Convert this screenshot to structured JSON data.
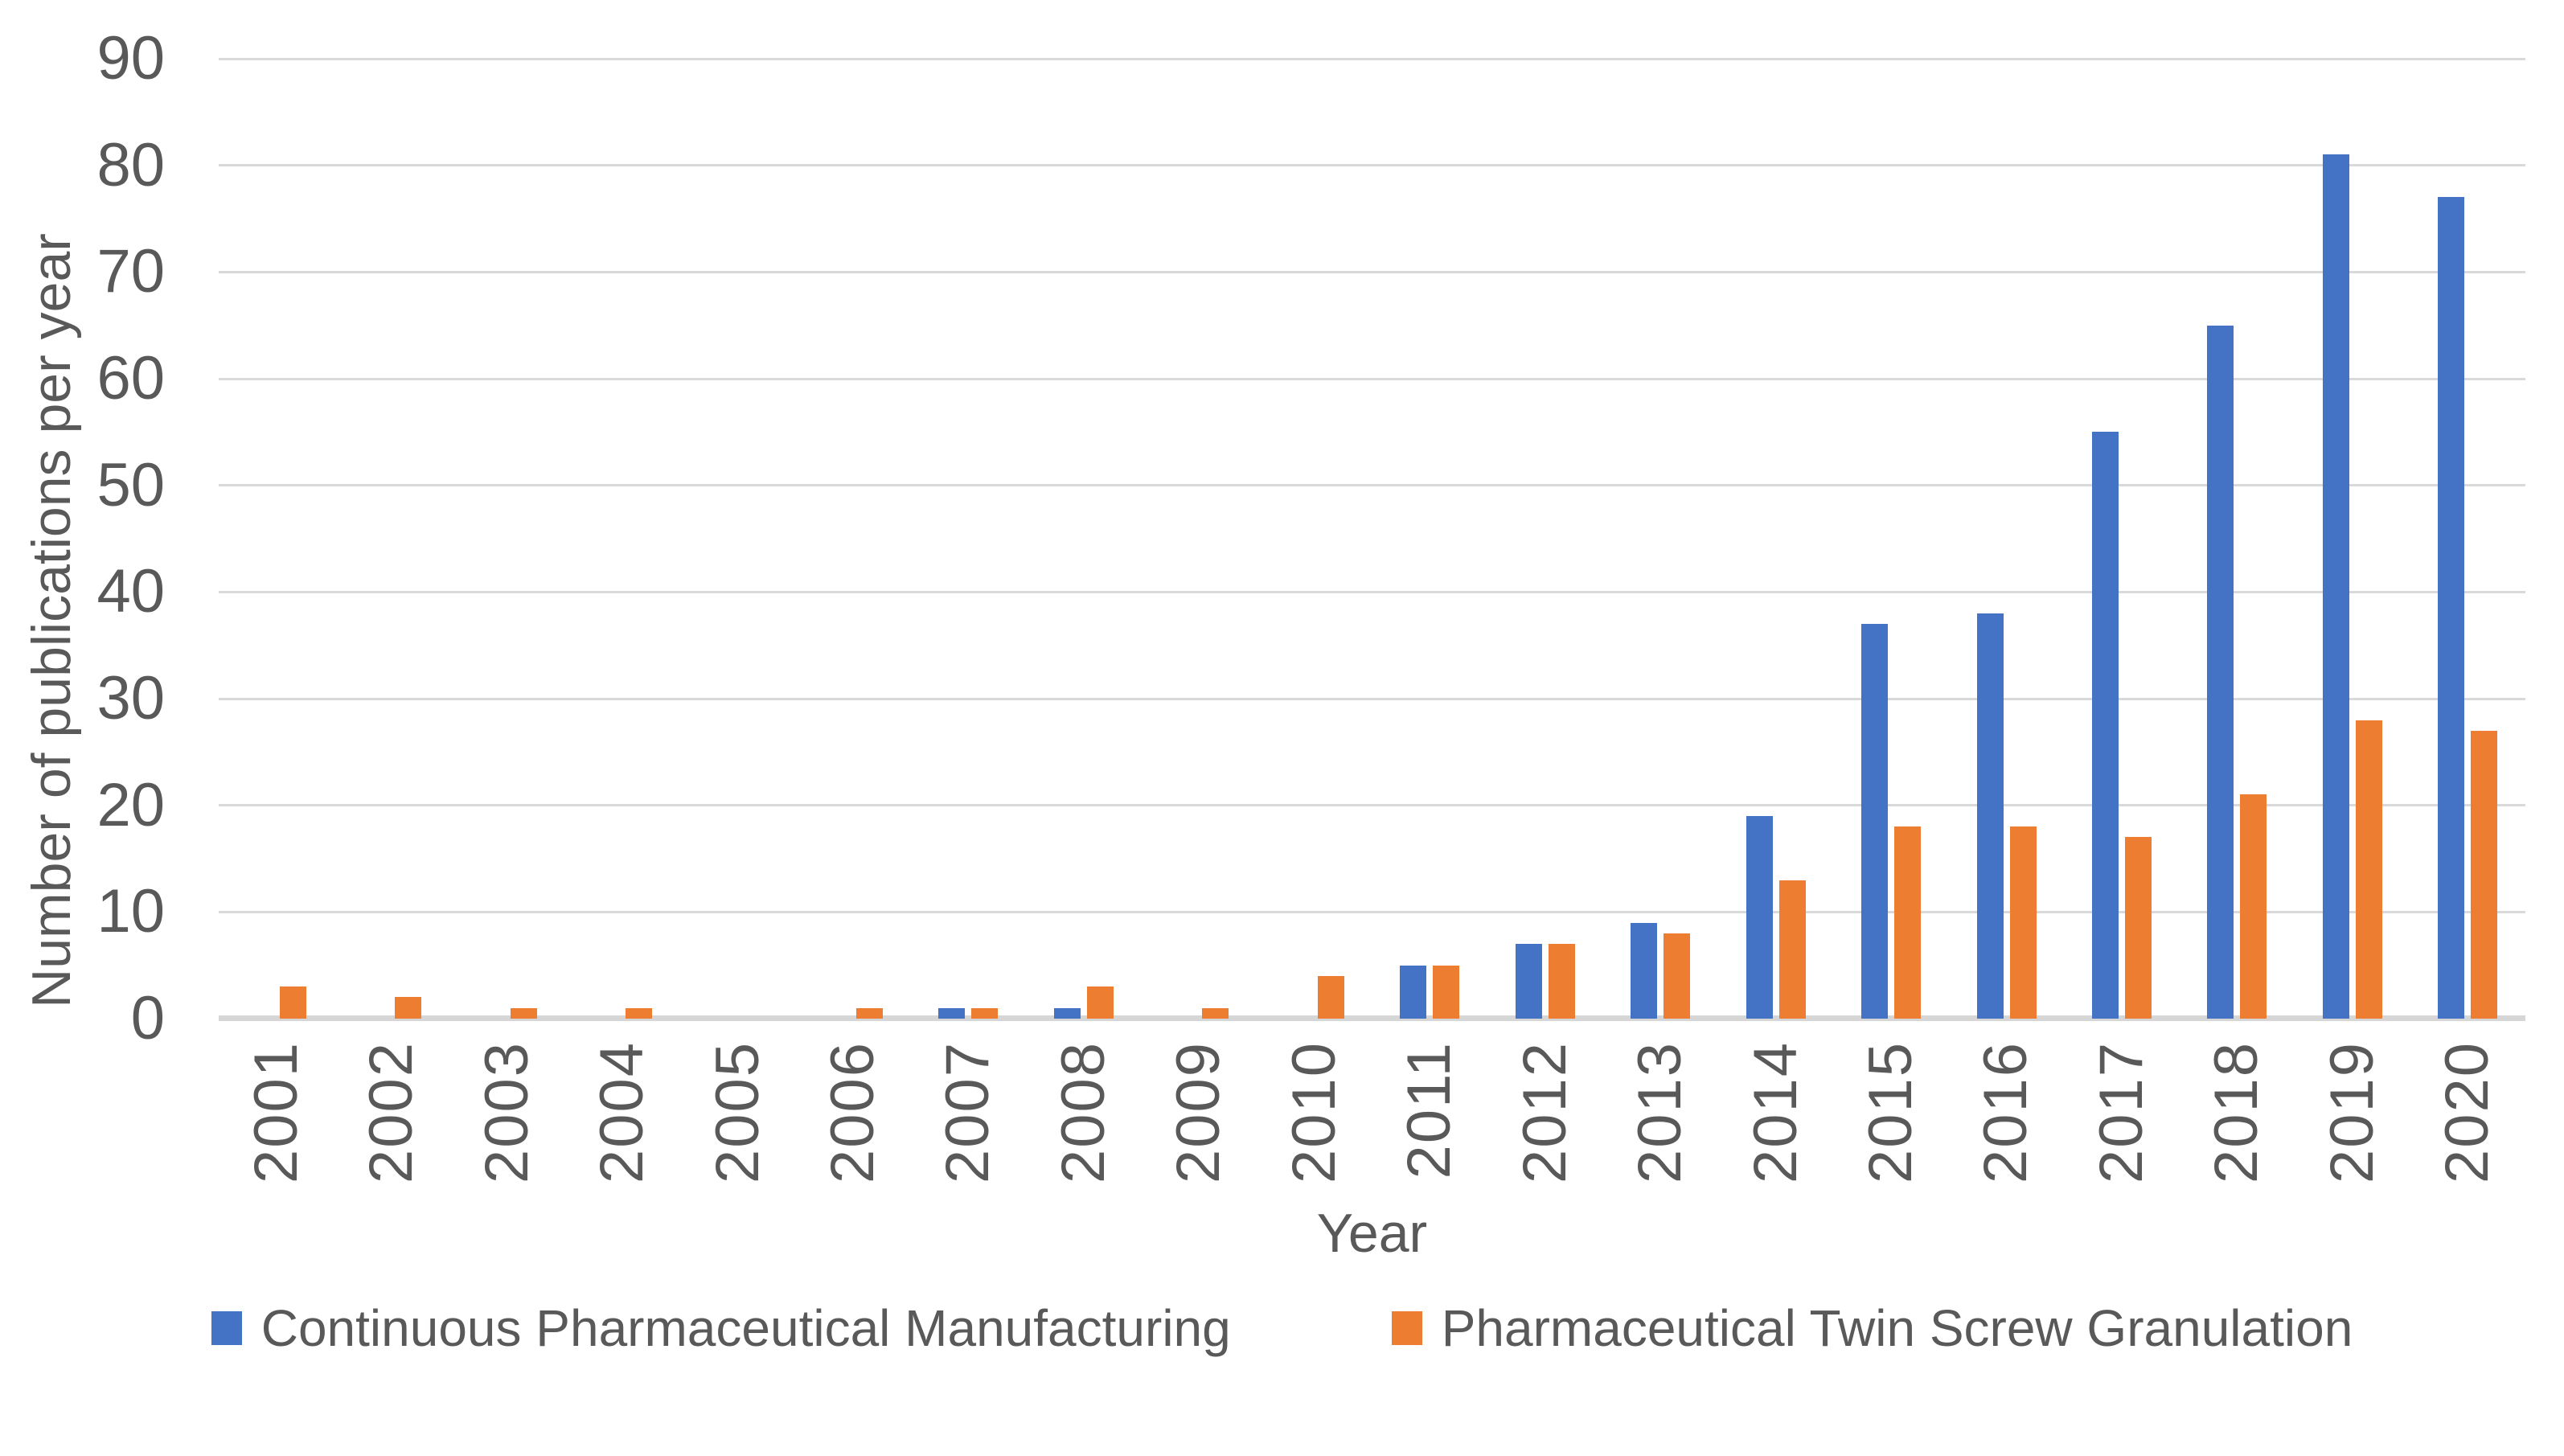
{
  "chart_data": {
    "type": "bar",
    "title": "",
    "xlabel": "Year",
    "ylabel": "Number of publications per year",
    "ylim": [
      0,
      90
    ],
    "ytick_step": 10,
    "ytick_labels": [
      "0",
      "10",
      "20",
      "30",
      "40",
      "50",
      "60",
      "70",
      "80",
      "90"
    ],
    "grid": true,
    "legend_position": "bottom",
    "categories": [
      "2001",
      "2002",
      "2003",
      "2004",
      "2005",
      "2006",
      "2007",
      "2008",
      "2009",
      "2010",
      "2011",
      "2012",
      "2013",
      "2014",
      "2015",
      "2016",
      "2017",
      "2018",
      "2019",
      "2020"
    ],
    "series": [
      {
        "name": "Continuous Pharmaceutical Manufacturing",
        "color": "#4472C4",
        "values": [
          0,
          0,
          0,
          0,
          0,
          0,
          1,
          1,
          0,
          0,
          5,
          7,
          9,
          19,
          37,
          38,
          55,
          65,
          81,
          77
        ]
      },
      {
        "name": "Pharmaceutical Twin Screw Granulation",
        "color": "#ED7D31",
        "values": [
          3,
          2,
          1,
          1,
          0,
          1,
          1,
          3,
          1,
          4,
          5,
          7,
          8,
          13,
          18,
          18,
          17,
          21,
          28,
          27
        ]
      }
    ]
  },
  "colors": {
    "text": "#595959",
    "gridline": "#D9D9D9",
    "axis_line": "#D6D6D6",
    "background": "#FFFFFF",
    "series_blue": "#4472C4",
    "series_orange": "#ED7D31"
  }
}
